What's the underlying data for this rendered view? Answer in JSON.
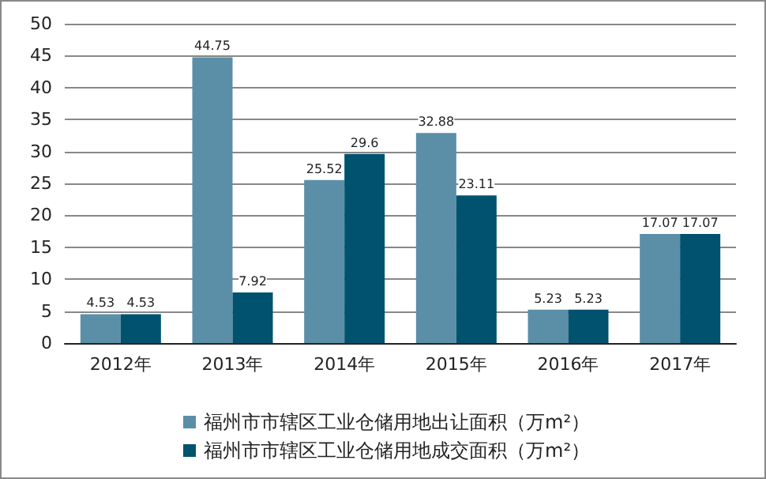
{
  "chart_data": {
    "type": "bar",
    "categories": [
      "2012年",
      "2013年",
      "2014年",
      "2015年",
      "2016年",
      "2017年"
    ],
    "series": [
      {
        "name": "福州市市辖区工业仓储用地出让面积（万m²）",
        "color": "#5b8fa8",
        "values": [
          4.53,
          44.75,
          25.52,
          32.88,
          5.23,
          17.07
        ]
      },
      {
        "name": "福州市市辖区工业仓储用地成交面积（万m²）",
        "color": "#01526e",
        "values": [
          4.53,
          7.92,
          29.6,
          23.11,
          5.23,
          17.07
        ]
      }
    ],
    "ylim": [
      0,
      50
    ],
    "yticks": [
      0,
      5,
      10,
      15,
      20,
      25,
      30,
      35,
      40,
      45,
      50
    ],
    "grid": "y",
    "legend": "bottom",
    "data_labels": true
  }
}
